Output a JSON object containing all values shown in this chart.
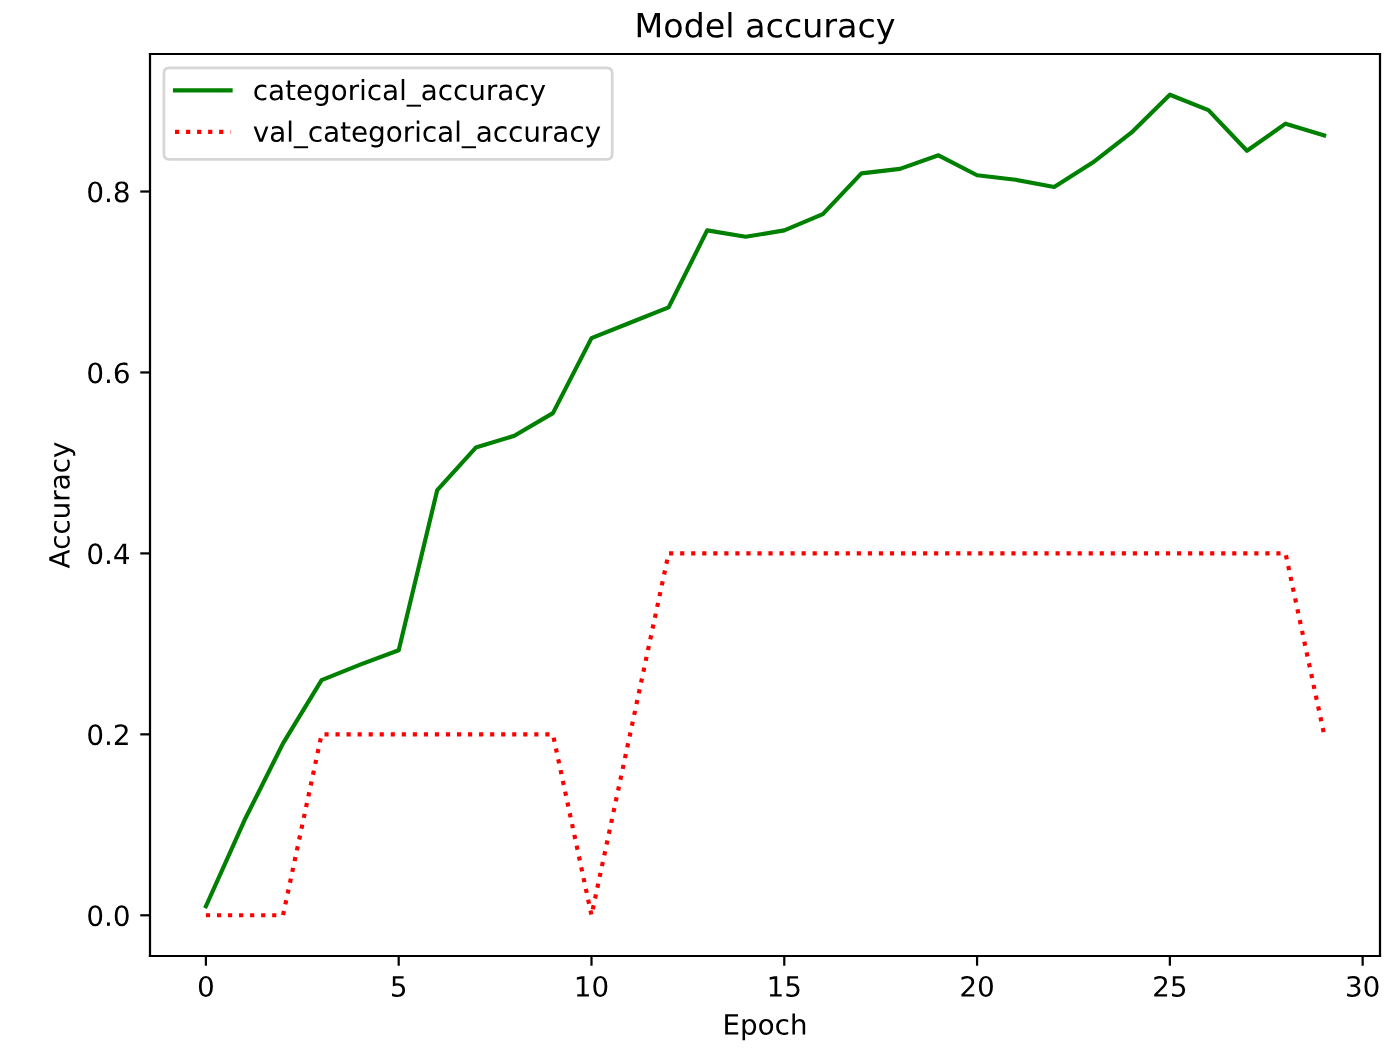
{
  "chart_data": {
    "type": "line",
    "title": "Model accuracy",
    "xlabel": "Epoch",
    "ylabel": "Accuracy",
    "x": [
      0,
      1,
      2,
      3,
      4,
      5,
      6,
      7,
      8,
      9,
      10,
      11,
      12,
      13,
      14,
      15,
      16,
      17,
      18,
      19,
      20,
      21,
      22,
      23,
      24,
      25,
      26,
      27,
      28,
      29
    ],
    "series": [
      {
        "name": "categorical_accuracy",
        "color": "#008000",
        "line_style": "solid",
        "values": [
          0.01,
          0.105,
          0.19,
          0.26,
          0.277,
          0.293,
          0.47,
          0.517,
          0.53,
          0.555,
          0.638,
          0.655,
          0.672,
          0.757,
          0.75,
          0.757,
          0.775,
          0.82,
          0.825,
          0.84,
          0.818,
          0.813,
          0.805,
          0.832,
          0.865,
          0.907,
          0.89,
          0.845,
          0.875,
          0.862
        ]
      },
      {
        "name": "val_categorical_accuracy",
        "color": "#ff0000",
        "line_style": "dotted",
        "values": [
          0,
          0,
          0,
          0.2,
          0.2,
          0.2,
          0.2,
          0.2,
          0.2,
          0.2,
          0,
          0.2,
          0.4,
          0.4,
          0.4,
          0.4,
          0.4,
          0.4,
          0.4,
          0.4,
          0.4,
          0.4,
          0.4,
          0.4,
          0.4,
          0.4,
          0.4,
          0.4,
          0.4,
          0.2
        ]
      }
    ],
    "xlim": [
      -1.45,
      30.45
    ],
    "ylim": [
      -0.045,
      0.952
    ],
    "xticks": [
      0,
      5,
      10,
      15,
      20,
      25,
      30
    ],
    "yticks": [
      {
        "value": 0,
        "label": "0.0"
      },
      {
        "value": 0.2,
        "label": "0.2"
      },
      {
        "value": 0.4,
        "label": "0.4"
      },
      {
        "value": 0.6,
        "label": "0.6"
      },
      {
        "value": 0.8,
        "label": "0.8"
      }
    ],
    "legend": "top left",
    "grid": false
  }
}
